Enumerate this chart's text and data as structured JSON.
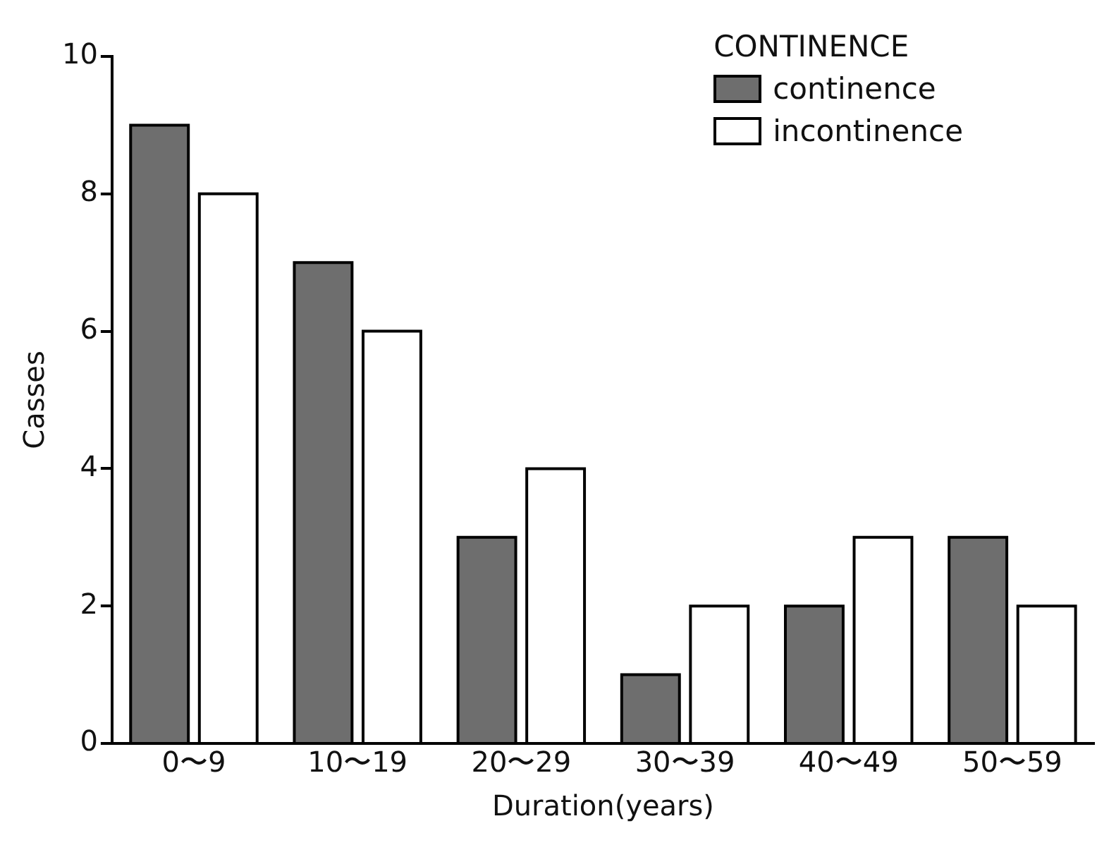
{
  "chart_data": {
    "type": "bar",
    "xlabel": "Duration(years)",
    "ylabel": "Casses",
    "legend_title": "CONTINENCE",
    "categories": [
      "0〜9",
      "10〜19",
      "20〜29",
      "30〜39",
      "40〜49",
      "50〜59"
    ],
    "series": [
      {
        "name": "continence",
        "color": "#6e6e6e",
        "values": [
          9,
          7,
          3,
          1,
          2,
          3
        ]
      },
      {
        "name": "incontinence",
        "color": "#ffffff",
        "values": [
          8,
          6,
          4,
          2,
          3,
          2
        ]
      }
    ],
    "ylim": [
      0,
      10
    ],
    "yticks": [
      0,
      2,
      4,
      6,
      8,
      10
    ],
    "grid": false,
    "legend": "top right"
  }
}
